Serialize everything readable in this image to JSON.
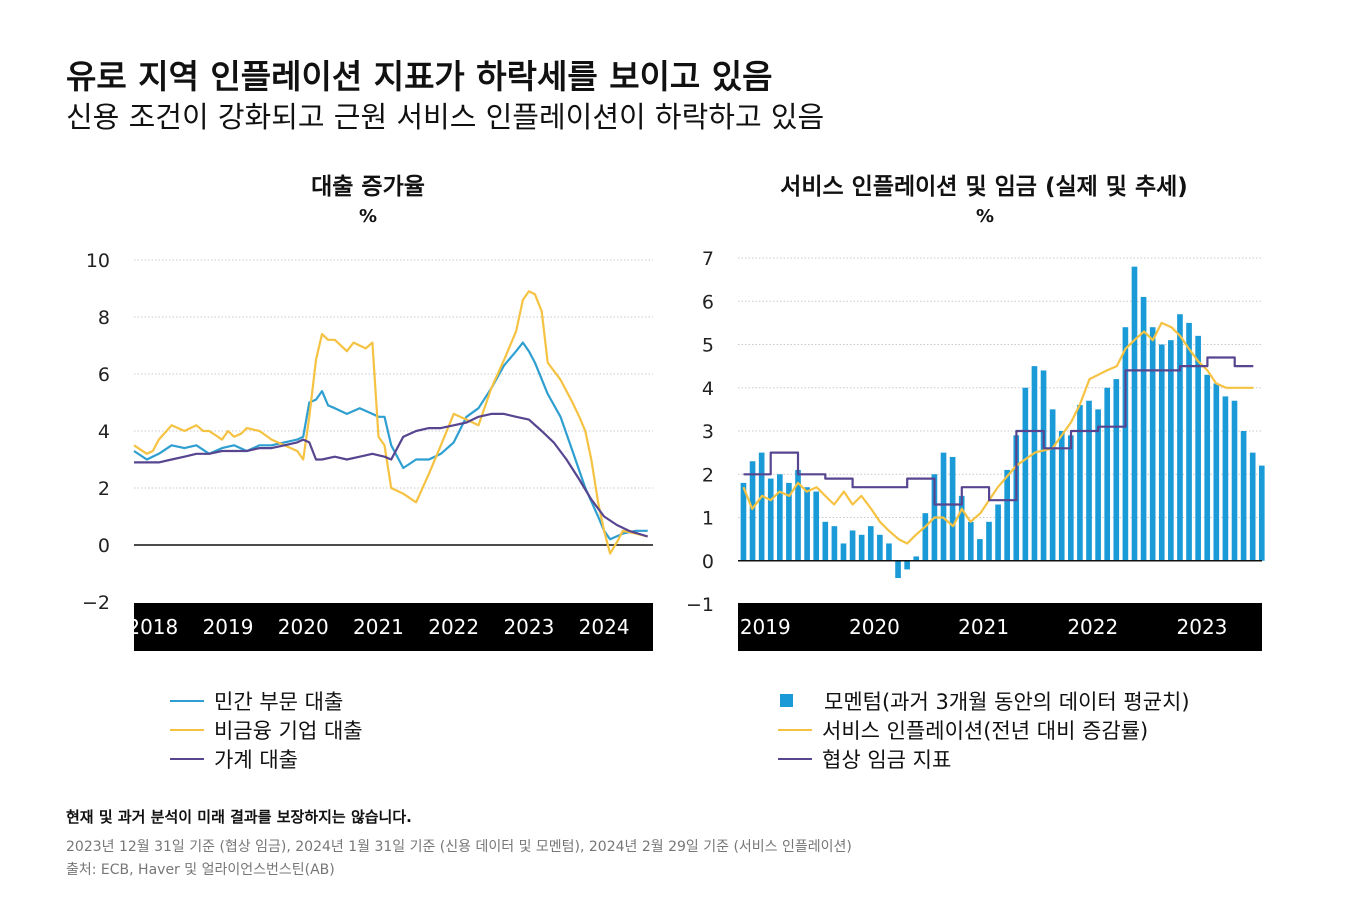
{
  "header": {
    "title": "유로 지역 인플레이션 지표가 하락세를 보이고 있음",
    "subtitle": "신용 조건이 강화되고 근원 서비스 인플레이션이 하락하고 있음"
  },
  "colors": {
    "blue": "#2e9fd0",
    "yellow": "#f5c242",
    "purple": "#574590",
    "bar": "#1a9ad6",
    "axis_band": "#000000"
  },
  "chart_data": [
    {
      "type": "line",
      "title": "대출 증가율",
      "ylabel": "%",
      "ylim": [
        -2,
        10
      ],
      "yticks": [
        10,
        8,
        6,
        4,
        2,
        0,
        -2
      ],
      "ytick_labels": [
        "10",
        "8",
        "6",
        "4",
        "2",
        "0",
        "−2"
      ],
      "xlim": [
        2017.75,
        2024.65
      ],
      "xticks": [
        2018,
        2019,
        2020,
        2021,
        2022,
        2023,
        2024
      ],
      "xtick_labels": [
        "2018",
        "2019",
        "2020",
        "2021",
        "2022",
        "2023",
        "2024"
      ],
      "legend_position": "bottom",
      "series": [
        {
          "name": "민간 부문 대출",
          "color": "#2e9fd0",
          "x": [
            2017.75,
            2017.92,
            2018.08,
            2018.25,
            2018.42,
            2018.58,
            2018.75,
            2018.92,
            2019.08,
            2019.25,
            2019.42,
            2019.58,
            2019.75,
            2019.92,
            2020.0,
            2020.08,
            2020.17,
            2020.25,
            2020.33,
            2020.42,
            2020.58,
            2020.75,
            2020.92,
            2021.0,
            2021.08,
            2021.17,
            2021.33,
            2021.5,
            2021.67,
            2021.83,
            2022.0,
            2022.17,
            2022.33,
            2022.5,
            2022.67,
            2022.83,
            2022.92,
            2023.0,
            2023.08,
            2023.25,
            2023.42,
            2023.58,
            2023.75,
            2023.92,
            2024.0,
            2024.08,
            2024.25,
            2024.42,
            2024.58
          ],
          "y": [
            3.3,
            3.0,
            3.2,
            3.5,
            3.4,
            3.5,
            3.2,
            3.4,
            3.5,
            3.3,
            3.5,
            3.5,
            3.6,
            3.7,
            3.8,
            5.0,
            5.1,
            5.4,
            4.9,
            4.8,
            4.6,
            4.8,
            4.6,
            4.5,
            4.5,
            3.5,
            2.7,
            3.0,
            3.0,
            3.2,
            3.6,
            4.5,
            4.8,
            5.5,
            6.3,
            6.8,
            7.1,
            6.8,
            6.4,
            5.3,
            4.5,
            3.3,
            2.0,
            1.0,
            0.5,
            0.2,
            0.4,
            0.5,
            0.5
          ]
        },
        {
          "name": "비금융 기업 대출",
          "color": "#f5c242",
          "x": [
            2017.75,
            2017.92,
            2018.0,
            2018.08,
            2018.25,
            2018.42,
            2018.58,
            2018.67,
            2018.75,
            2018.92,
            2019.0,
            2019.08,
            2019.17,
            2019.25,
            2019.42,
            2019.58,
            2019.75,
            2019.92,
            2020.0,
            2020.08,
            2020.17,
            2020.25,
            2020.33,
            2020.42,
            2020.58,
            2020.67,
            2020.83,
            2020.92,
            2021.0,
            2021.08,
            2021.17,
            2021.33,
            2021.5,
            2021.67,
            2021.83,
            2022.0,
            2022.17,
            2022.33,
            2022.5,
            2022.67,
            2022.83,
            2022.92,
            2023.0,
            2023.08,
            2023.17,
            2023.25,
            2023.42,
            2023.58,
            2023.67,
            2023.75,
            2023.83,
            2023.92,
            2024.0,
            2024.08,
            2024.17,
            2024.25,
            2024.42,
            2024.58
          ],
          "y": [
            3.5,
            3.2,
            3.3,
            3.7,
            4.2,
            4.0,
            4.2,
            4.0,
            4.0,
            3.7,
            4.0,
            3.8,
            3.9,
            4.1,
            4.0,
            3.7,
            3.5,
            3.3,
            3.0,
            4.5,
            6.5,
            7.4,
            7.2,
            7.2,
            6.8,
            7.1,
            6.9,
            7.1,
            3.8,
            3.5,
            2.0,
            1.8,
            1.5,
            2.5,
            3.5,
            4.6,
            4.4,
            4.2,
            5.5,
            6.5,
            7.5,
            8.6,
            8.9,
            8.8,
            8.2,
            6.4,
            5.8,
            5.0,
            4.5,
            4.0,
            3.0,
            1.5,
            0.5,
            -0.3,
            0.1,
            0.5,
            0.4,
            0.3
          ]
        },
        {
          "name": "가계 대출",
          "color": "#574590",
          "x": [
            2017.75,
            2017.92,
            2018.08,
            2018.25,
            2018.42,
            2018.58,
            2018.75,
            2018.92,
            2019.08,
            2019.25,
            2019.42,
            2019.58,
            2019.75,
            2019.92,
            2020.0,
            2020.08,
            2020.17,
            2020.25,
            2020.42,
            2020.58,
            2020.75,
            2020.92,
            2021.08,
            2021.17,
            2021.33,
            2021.5,
            2021.67,
            2021.83,
            2022.0,
            2022.17,
            2022.33,
            2022.5,
            2022.67,
            2022.83,
            2023.0,
            2023.17,
            2023.33,
            2023.5,
            2023.67,
            2023.83,
            2024.0,
            2024.17,
            2024.33,
            2024.58
          ],
          "y": [
            2.9,
            2.9,
            2.9,
            3.0,
            3.1,
            3.2,
            3.2,
            3.3,
            3.3,
            3.3,
            3.4,
            3.4,
            3.5,
            3.6,
            3.7,
            3.6,
            3.0,
            3.0,
            3.1,
            3.0,
            3.1,
            3.2,
            3.1,
            3.0,
            3.8,
            4.0,
            4.1,
            4.1,
            4.2,
            4.3,
            4.5,
            4.6,
            4.6,
            4.5,
            4.4,
            4.0,
            3.6,
            3.0,
            2.3,
            1.6,
            1.0,
            0.7,
            0.5,
            0.3
          ]
        }
      ]
    },
    {
      "type": "bar+line",
      "title": "서비스 인플레이션 및 임금 (실제 및 추세)",
      "ylabel": "%",
      "ylim": [
        -1,
        7
      ],
      "yticks": [
        7,
        6,
        5,
        4,
        3,
        2,
        1,
        0,
        -1
      ],
      "ytick_labels": [
        "7",
        "6",
        "5",
        "4",
        "3",
        "2",
        "1",
        "0",
        "−1"
      ],
      "xlim": [
        2018.95,
        2023.75
      ],
      "xticks": [
        2019,
        2020,
        2021,
        2022,
        2023
      ],
      "xtick_labels": [
        "2019",
        "2020",
        "2021",
        "2022",
        "2023"
      ],
      "legend_position": "bottom",
      "bar_series": {
        "name": "모멘텀(과거 3개월 동안의 데이터 평균치)",
        "color": "#1a9ad6",
        "start": 2019.0,
        "step": 0.0833,
        "values": [
          1.8,
          2.3,
          2.5,
          1.9,
          2.0,
          1.8,
          2.1,
          1.7,
          1.6,
          0.9,
          0.8,
          0.4,
          0.7,
          0.6,
          0.8,
          0.6,
          0.4,
          -0.4,
          -0.2,
          0.1,
          1.1,
          2.0,
          2.5,
          2.4,
          1.5,
          0.9,
          0.5,
          0.9,
          1.3,
          2.1,
          2.9,
          4.0,
          4.5,
          4.4,
          3.5,
          3.0,
          2.9,
          3.6,
          3.7,
          3.5,
          4.0,
          4.2,
          5.4,
          6.8,
          6.1,
          5.4,
          5.0,
          5.1,
          5.7,
          5.5,
          5.2,
          4.3,
          4.1,
          3.8,
          3.7,
          3.0,
          2.5,
          2.2
        ]
      },
      "series": [
        {
          "name": "서비스 인플레이션(전년 대비 증감률)",
          "color": "#f5c242",
          "x": [
            2019.0,
            2019.08,
            2019.17,
            2019.25,
            2019.33,
            2019.42,
            2019.5,
            2019.58,
            2019.67,
            2019.75,
            2019.83,
            2019.92,
            2020.0,
            2020.08,
            2020.17,
            2020.25,
            2020.33,
            2020.42,
            2020.5,
            2020.58,
            2020.67,
            2020.75,
            2020.83,
            2020.92,
            2021.0,
            2021.08,
            2021.17,
            2021.33,
            2021.5,
            2021.67,
            2021.83,
            2022.0,
            2022.08,
            2022.17,
            2022.25,
            2022.33,
            2022.42,
            2022.5,
            2022.58,
            2022.67,
            2022.75,
            2022.83,
            2022.92,
            2023.0,
            2023.08,
            2023.17,
            2023.25,
            2023.33,
            2023.42,
            2023.5,
            2023.58,
            2023.67
          ],
          "y": [
            1.7,
            1.2,
            1.5,
            1.4,
            1.6,
            1.5,
            1.8,
            1.6,
            1.7,
            1.5,
            1.3,
            1.6,
            1.3,
            1.5,
            1.2,
            0.9,
            0.7,
            0.5,
            0.4,
            0.6,
            0.8,
            1.0,
            1.0,
            0.8,
            1.2,
            0.9,
            1.1,
            1.7,
            2.2,
            2.5,
            2.6,
            3.2,
            3.6,
            4.2,
            4.3,
            4.4,
            4.5,
            4.9,
            5.1,
            5.3,
            5.1,
            5.5,
            5.4,
            5.2,
            4.9,
            4.6,
            4.4,
            4.1,
            4.0,
            4.0,
            4.0,
            4.0
          ]
        },
        {
          "name": "협상 임금 지표",
          "color": "#574590",
          "step": true,
          "x": [
            2019.0,
            2019.25,
            2019.5,
            2019.75,
            2020.0,
            2020.25,
            2020.5,
            2020.75,
            2021.0,
            2021.25,
            2021.5,
            2021.75,
            2022.0,
            2022.25,
            2022.5,
            2022.75,
            2023.0,
            2023.25,
            2023.5
          ],
          "y": [
            2.0,
            2.5,
            2.0,
            1.9,
            1.7,
            1.7,
            1.9,
            1.3,
            1.7,
            1.4,
            3.0,
            2.6,
            3.0,
            3.1,
            4.4,
            4.4,
            4.5,
            4.7,
            4.5
          ]
        }
      ]
    }
  ],
  "footer": {
    "note": "현재 및 과거 분석이 미래 결과를 보장하지는 않습니다.",
    "dates": "2023년 12월 31일 기준 (협상 임금), 2024년 1월 31일 기준 (신용 데이터 및 모멘텀), 2024년 2월 29일 기준 (서비스 인플레이션)",
    "source": "출처: ECB, Haver 및 얼라이언스번스틴(AB)"
  }
}
